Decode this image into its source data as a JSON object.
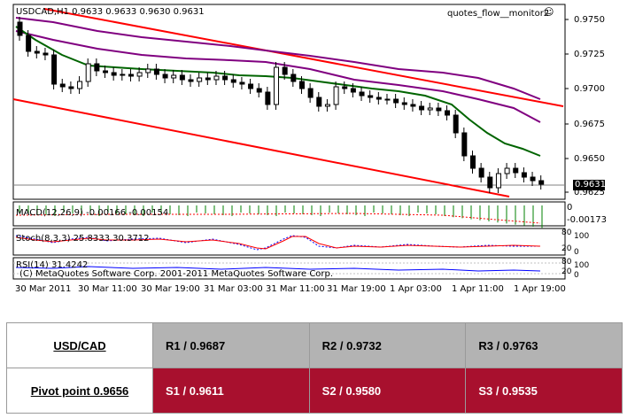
{
  "chart": {
    "symbol_header": "USDCAD,H1  0.9633 0.9633 0.9630 0.9631",
    "expert_label": "quotes_flow__monitor2",
    "price_badge": "0.9631",
    "price_axis_labels": [
      "0.9750",
      "0.9725",
      "0.9700",
      "0.9675",
      "0.9650",
      "0.9625"
    ],
    "macd_label": "MACD(12,26,9) -0.00166 -0.00154",
    "macd_axis_labels": [
      "0",
      "-0.00173"
    ],
    "stoch_label": "Stoch(8,3,3) 25.8333 30.3712",
    "stoch_axis_labels": [
      "80",
      "100",
      "20",
      "0"
    ],
    "rsi_label": "RSI(14) 31.4242",
    "rsi_axis_labels": [
      "80",
      "100",
      "20",
      "0"
    ],
    "copyright": "(C) MetaQuotes Software Corp.  2001-2011 MetaQuotes Software Corp.",
    "time_axis_labels": [
      "30 Mar 2011",
      "30 Mar 11:00",
      "30 Mar 19:00",
      "31 Mar 03:00",
      "31 Mar 11:00",
      "31 Mar 19:00",
      "1 Apr 03:00",
      "1 Apr 11:00",
      "1 Apr 19:00"
    ],
    "colors": {
      "resistance_line": "#ff0000",
      "ma_green": "#006400",
      "ma_purple": "#800080",
      "bull_candle": "#ffffff",
      "bear_candle": "#000000"
    }
  },
  "pivot_table": {
    "pair": "USD/CAD",
    "pivot": "Pivot point 0.9656",
    "resistance": [
      "R1 / 0.9687",
      "R2 / 0.9732",
      "R3 / 0.9763"
    ],
    "support": [
      "S1 / 0.9611",
      "S2 / 0.9580",
      "S3 / 0.9535"
    ],
    "colors": {
      "resistance_bg": "#b3b3b3",
      "support_bg": "#a8102e"
    }
  }
}
